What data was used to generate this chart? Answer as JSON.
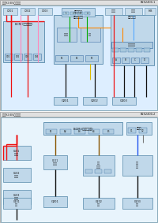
{
  "page_bg": "#f8f8f8",
  "diagram_bg": "#ddeeff",
  "header_bg": "#dddddd",
  "box_fill": "#c4ddf0",
  "box_fill2": "#b8d4e8",
  "box_stroke": "#6699bb",
  "wire": {
    "red": "#ee1111",
    "black": "#111111",
    "pink": "#ff88bb",
    "green": "#00aa00",
    "blue": "#2255ee",
    "ltblue": "#55aaff",
    "orange": "#ff8800",
    "yellow": "#ddbb00",
    "brown": "#885500",
    "purple": "#9900cc",
    "gray": "#777777",
    "cyan": "#00aacc"
  },
  "p1_title": "起亚K3 EV维修指南",
  "p1_code": "B252400-1",
  "p2_code": "B252400-2"
}
